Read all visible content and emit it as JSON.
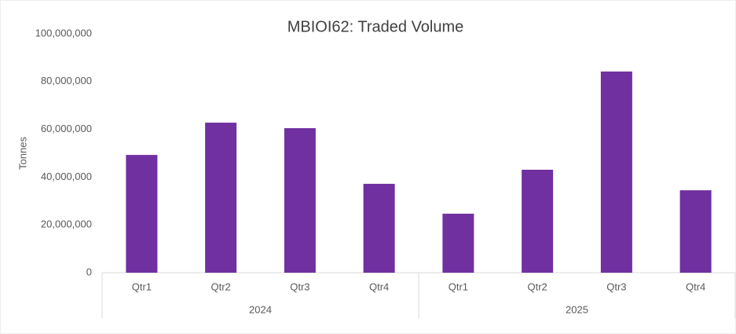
{
  "chart_data": {
    "type": "bar",
    "title": "MBIOI62: Traded Volume",
    "y_label": "Tonnes",
    "color": "#7030a0",
    "groups": [
      {
        "label": "2024",
        "categories": [
          "Qtr1",
          "Qtr2",
          "Qtr3",
          "Qtr4"
        ],
        "values": [
          49300000,
          62800000,
          60500000,
          37200000
        ]
      },
      {
        "label": "2025",
        "categories": [
          "Qtr1",
          "Qtr2",
          "Qtr3",
          "Qtr4"
        ],
        "values": [
          24700000,
          43100000,
          84200000,
          34500000
        ]
      }
    ],
    "ylim": [
      0,
      100000000
    ],
    "yticks": [
      0,
      {
        "value": 20000000,
        "label": "20,000,000"
      },
      {
        "value": 40000000,
        "label": "40,000,000"
      },
      {
        "value": 60000000,
        "label": "60,000,000"
      },
      {
        "value": 80000000,
        "label": "80,000,000"
      },
      {
        "value": 100000000,
        "label": "100,000,000"
      }
    ],
    "grid": false
  }
}
